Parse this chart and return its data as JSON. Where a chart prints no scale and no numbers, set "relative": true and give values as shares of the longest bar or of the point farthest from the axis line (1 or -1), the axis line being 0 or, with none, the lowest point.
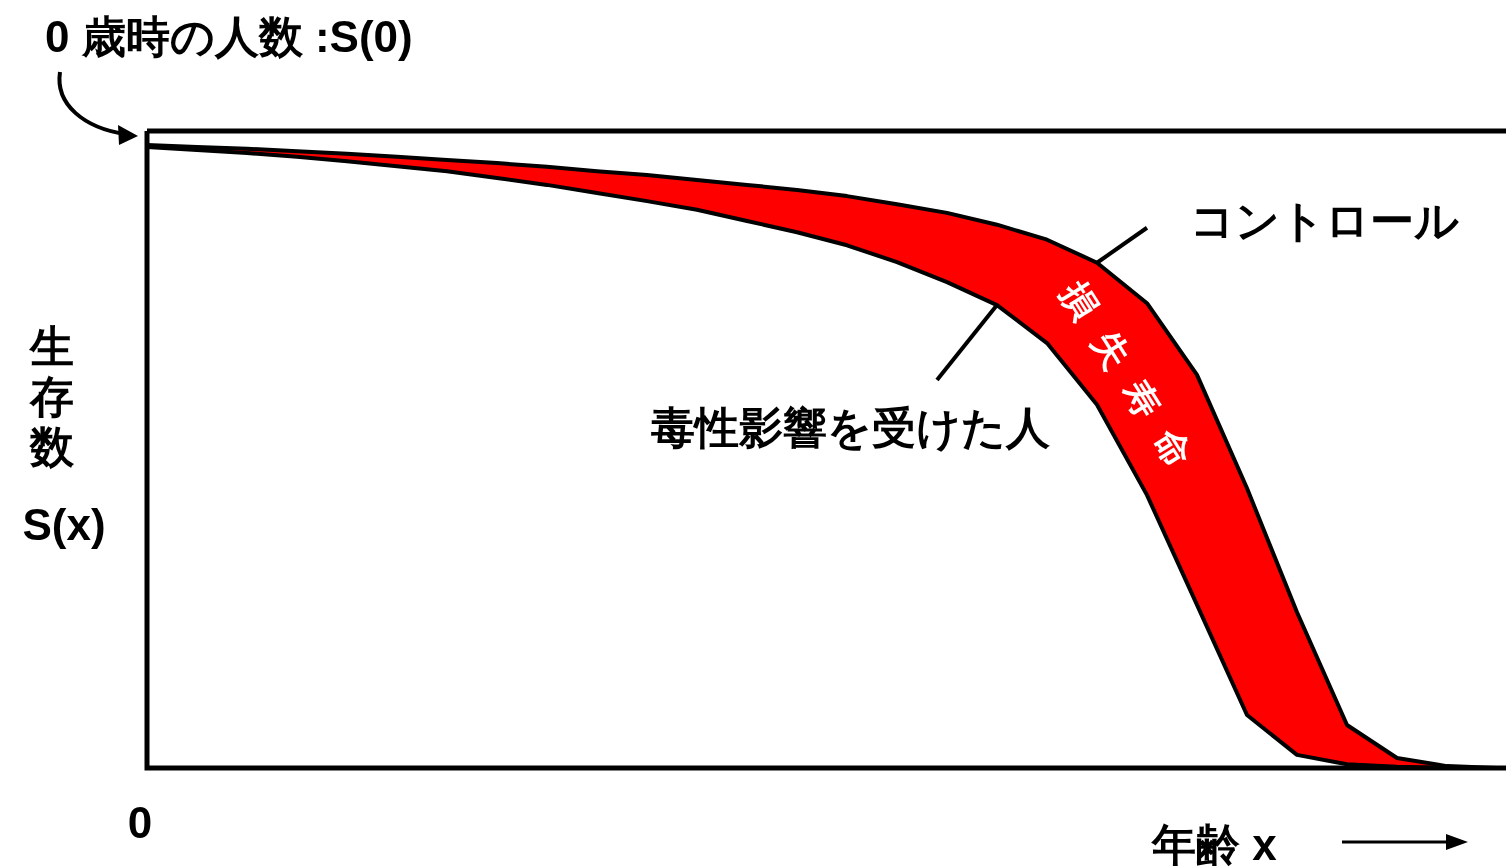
{
  "chart_data": {
    "type": "line",
    "relative": true,
    "xlabel": "年齢 x",
    "ylabel": "生存数 S(x)",
    "grid": false,
    "marker": "none",
    "line_style": "solid",
    "categories": [
      null,
      null,
      null,
      null,
      null,
      null,
      null,
      null,
      null,
      null,
      null,
      null,
      null,
      null,
      null,
      null,
      null,
      null,
      null,
      null,
      null,
      null,
      null,
      null,
      null,
      null,
      null,
      null
    ],
    "series": [
      {
        "name": "コントロール",
        "type": "area",
        "color": "#ff0000",
        "values": [
          1,
          0.997,
          0.994,
          0.99,
          0.986,
          0.981,
          0.976,
          0.971,
          0.965,
          0.958,
          0.952,
          0.944,
          0.936,
          0.928,
          0.918,
          0.905,
          0.891,
          0.872,
          0.848,
          0.811,
          0.746,
          0.631,
          0.449,
          0.25,
          0.069,
          0.016,
          0.003,
          0
        ]
      },
      {
        "name": "毒性影響を受けた人",
        "color": "#000000",
        "values": [
          0.997,
          0.992,
          0.987,
          0.981,
          0.974,
          0.966,
          0.958,
          0.947,
          0.936,
          0.923,
          0.91,
          0.896,
          0.878,
          0.86,
          0.839,
          0.812,
          0.78,
          0.743,
          0.682,
          0.583,
          0.438,
          0.262,
          0.085,
          0.021,
          0.006,
          0.002,
          0,
          0
        ]
      }
    ],
    "annotations": [
      "0 歳時の人数 :S(0)",
      "損失寿命",
      "0"
    ]
  }
}
